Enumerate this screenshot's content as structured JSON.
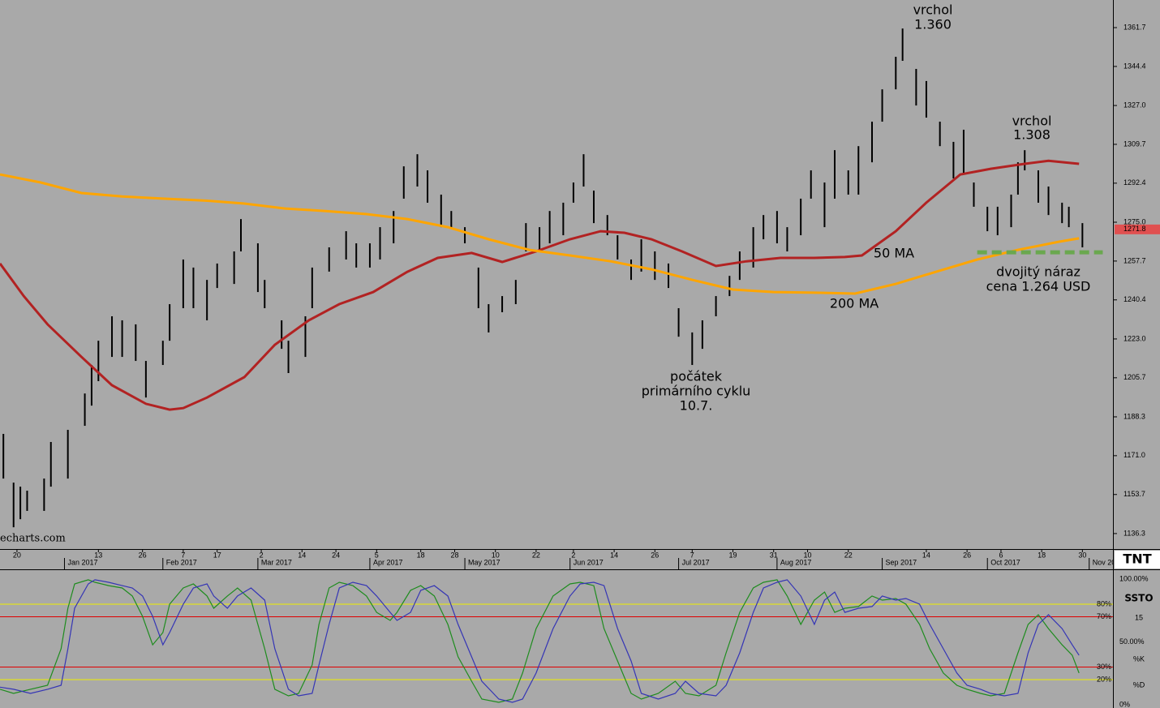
{
  "chart_data": [
    {
      "type": "ohlc",
      "color": "#000000",
      "x": [
        "2016-12-16",
        "2016-12-19",
        "2016-12-21",
        "2016-12-23",
        "2016-12-28",
        "2016-12-30",
        "2017-01-04",
        "2017-01-09",
        "2017-01-11",
        "2017-01-13",
        "2017-01-17",
        "2017-01-20",
        "2017-01-24",
        "2017-01-27",
        "2017-02-01",
        "2017-02-03",
        "2017-02-07",
        "2017-02-10",
        "2017-02-14",
        "2017-02-17",
        "2017-02-22",
        "2017-02-24",
        "2017-03-01",
        "2017-03-03",
        "2017-03-08",
        "2017-03-10",
        "2017-03-15",
        "2017-03-17",
        "2017-03-22",
        "2017-03-27",
        "2017-03-30",
        "2017-04-03",
        "2017-04-06",
        "2017-04-10",
        "2017-04-13",
        "2017-04-17",
        "2017-04-20",
        "2017-04-24",
        "2017-04-27",
        "2017-05-01",
        "2017-05-05",
        "2017-05-08",
        "2017-05-12",
        "2017-05-16",
        "2017-05-19",
        "2017-05-23",
        "2017-05-26",
        "2017-05-30",
        "2017-06-02",
        "2017-06-05",
        "2017-06-08",
        "2017-06-12",
        "2017-06-15",
        "2017-06-19",
        "2017-06-22",
        "2017-06-26",
        "2017-06-30",
        "2017-07-03",
        "2017-07-07",
        "2017-07-10",
        "2017-07-14",
        "2017-07-18",
        "2017-07-21",
        "2017-07-25",
        "2017-07-28",
        "2017-08-01",
        "2017-08-04",
        "2017-08-08",
        "2017-08-11",
        "2017-08-15",
        "2017-08-18",
        "2017-08-22",
        "2017-08-25",
        "2017-08-29",
        "2017-09-01",
        "2017-09-05",
        "2017-09-07",
        "2017-09-11",
        "2017-09-14",
        "2017-09-18",
        "2017-09-22",
        "2017-09-25",
        "2017-09-28",
        "2017-10-02",
        "2017-10-05",
        "2017-10-09",
        "2017-10-11",
        "2017-10-13",
        "2017-10-17",
        "2017-10-20",
        "2017-10-24",
        "2017-10-26",
        "2017-10-30"
      ],
      "high": [
        1180.7,
        1159.0,
        1157.2,
        1155.4,
        1160.8,
        1177.1,
        1182.5,
        1198.7,
        1211.4,
        1222.2,
        1233.1,
        1231.3,
        1229.5,
        1213.2,
        1222.2,
        1238.5,
        1258.4,
        1254.8,
        1249.3,
        1256.6,
        1262.0,
        1276.4,
        1265.6,
        1249.3,
        1231.3,
        1222.2,
        1233.1,
        1254.8,
        1263.8,
        1271.0,
        1265.6,
        1265.6,
        1272.8,
        1280.0,
        1299.9,
        1305.3,
        1298.1,
        1287.3,
        1280.0,
        1272.8,
        1254.8,
        1238.5,
        1242.1,
        1249.3,
        1274.6,
        1272.8,
        1280.0,
        1283.7,
        1292.7,
        1305.3,
        1289.1,
        1278.2,
        1269.2,
        1258.4,
        1267.4,
        1262.0,
        1256.6,
        1236.7,
        1225.9,
        1231.3,
        1242.1,
        1251.1,
        1262.0,
        1272.8,
        1278.2,
        1280.0,
        1272.8,
        1285.5,
        1298.1,
        1292.7,
        1307.1,
        1298.1,
        1308.9,
        1319.8,
        1334.2,
        1348.7,
        1361.3,
        1343.3,
        1337.9,
        1319.8,
        1310.8,
        1316.2,
        1292.7,
        1281.9,
        1281.9,
        1287.3,
        1301.7,
        1307.1,
        1298.1,
        1290.9,
        1283.7,
        1281.9,
        1274.6
      ],
      "low": [
        1160.8,
        1139.1,
        1142.7,
        1146.4,
        1146.4,
        1157.2,
        1160.8,
        1184.3,
        1193.3,
        1204.2,
        1215.0,
        1215.0,
        1213.2,
        1196.9,
        1211.4,
        1222.2,
        1236.7,
        1236.7,
        1231.3,
        1245.7,
        1247.5,
        1262.0,
        1243.9,
        1236.7,
        1218.6,
        1207.8,
        1215.0,
        1236.7,
        1253.0,
        1258.4,
        1254.8,
        1254.8,
        1258.4,
        1265.6,
        1285.5,
        1290.9,
        1283.7,
        1272.8,
        1272.8,
        1265.6,
        1236.7,
        1225.9,
        1234.9,
        1238.5,
        1262.0,
        1262.0,
        1265.6,
        1269.2,
        1283.7,
        1290.9,
        1274.6,
        1269.2,
        1258.4,
        1249.3,
        1253.0,
        1249.3,
        1245.7,
        1224.0,
        1211.4,
        1218.6,
        1233.1,
        1242.1,
        1249.3,
        1254.8,
        1267.4,
        1265.6,
        1262.0,
        1269.2,
        1285.5,
        1272.8,
        1285.5,
        1287.3,
        1287.3,
        1301.7,
        1319.8,
        1334.2,
        1346.9,
        1327.0,
        1321.6,
        1308.9,
        1294.5,
        1296.3,
        1281.9,
        1271.0,
        1269.2,
        1272.8,
        1287.3,
        1298.1,
        1283.7,
        1278.2,
        1274.6,
        1272.8,
        1263.8
      ],
      "moving_averages": [
        {
          "name": "50 MA",
          "color": "#b22222",
          "x": [
            "2016-12-15",
            "2016-12-22",
            "2016-12-29",
            "2017-01-08",
            "2017-01-17",
            "2017-01-27",
            "2017-02-03",
            "2017-02-07",
            "2017-02-14",
            "2017-02-25",
            "2017-03-06",
            "2017-03-16",
            "2017-03-25",
            "2017-04-04",
            "2017-04-14",
            "2017-04-23",
            "2017-05-03",
            "2017-05-12",
            "2017-05-22",
            "2017-06-01",
            "2017-06-10",
            "2017-06-17",
            "2017-06-25",
            "2017-07-04",
            "2017-07-14",
            "2017-07-23",
            "2017-08-02",
            "2017-08-12",
            "2017-08-21",
            "2017-08-26",
            "2017-09-05",
            "2017-09-14",
            "2017-09-24",
            "2017-10-03",
            "2017-10-13",
            "2017-10-20",
            "2017-10-29"
          ],
          "values": [
            1256.6,
            1242.1,
            1229.5,
            1215.0,
            1202.4,
            1194.1,
            1191.5,
            1192.2,
            1196.9,
            1206.0,
            1220.4,
            1231.3,
            1238.5,
            1243.9,
            1252.9,
            1259.1,
            1261.3,
            1257.3,
            1262.0,
            1267.4,
            1271.0,
            1270.3,
            1267.4,
            1262.0,
            1255.5,
            1257.6,
            1259.1,
            1259.1,
            1259.5,
            1260.2,
            1271.0,
            1283.7,
            1296.3,
            1298.8,
            1301.0,
            1302.4,
            1301.0
          ]
        },
        {
          "name": "200 MA",
          "color": "#ffa500",
          "x": [
            "2016-12-15",
            "2016-12-27",
            "2017-01-08",
            "2017-01-20",
            "2017-02-01",
            "2017-02-13",
            "2017-02-25",
            "2017-03-09",
            "2017-03-21",
            "2017-04-02",
            "2017-04-14",
            "2017-04-26",
            "2017-05-08",
            "2017-05-20",
            "2017-06-01",
            "2017-06-13",
            "2017-06-25",
            "2017-07-07",
            "2017-07-19",
            "2017-07-31",
            "2017-08-12",
            "2017-08-24",
            "2017-09-05",
            "2017-09-17",
            "2017-09-29",
            "2017-10-11",
            "2017-10-23",
            "2017-10-29"
          ],
          "values": [
            1296.3,
            1292.7,
            1288.0,
            1286.5,
            1285.5,
            1284.7,
            1283.3,
            1281.1,
            1280.0,
            1278.6,
            1276.4,
            1272.8,
            1267.4,
            1262.7,
            1260.2,
            1257.6,
            1254.0,
            1249.3,
            1245.0,
            1243.9,
            1243.6,
            1243.2,
            1247.5,
            1253.0,
            1258.4,
            1262.7,
            1266.3,
            1267.8
          ]
        }
      ],
      "support": {
        "value": 1261.6,
        "x": [
          "2017-09-29",
          "2017-11-05"
        ],
        "color": "#6aa84f"
      },
      "last_value": 1271.8,
      "xlim": [
        "2016-12-15",
        "2017-11-08"
      ],
      "ylim": [
        1129.4,
        1374.0
      ],
      "yticks": [
        1136.3,
        1153.7,
        {
          "value": 1171,
          "label": "1171.0"
        },
        1188.3,
        1205.7,
        {
          "value": 1223,
          "label": "1223.0"
        },
        1240.4,
        1257.7,
        {
          "value": 1275,
          "label": "1275.0"
        },
        1292.4,
        1309.7,
        {
          "value": 1327,
          "label": "1327.0"
        },
        1344.4,
        1361.7
      ],
      "xticks": [
        {
          "value": "2016-12-20",
          "label": "20"
        },
        {
          "value": "2017-01-13",
          "label": "13"
        },
        {
          "value": "2017-01-26",
          "label": "26"
        },
        {
          "value": "2017-02-07",
          "label": "7"
        },
        {
          "value": "2017-02-17",
          "label": "17"
        },
        {
          "value": "2017-03-02",
          "label": "2"
        },
        {
          "value": "2017-03-14",
          "label": "14"
        },
        {
          "value": "2017-03-24",
          "label": "24"
        },
        {
          "value": "2017-04-05",
          "label": "5"
        },
        {
          "value": "2017-04-18",
          "label": "18"
        },
        {
          "value": "2017-04-28",
          "label": "28"
        },
        {
          "value": "2017-05-10",
          "label": "10"
        },
        {
          "value": "2017-05-22",
          "label": "22"
        },
        {
          "value": "2017-06-02",
          "label": "2"
        },
        {
          "value": "2017-06-14",
          "label": "14"
        },
        {
          "value": "2017-06-26",
          "label": "26"
        },
        {
          "value": "2017-07-07",
          "label": "7"
        },
        {
          "value": "2017-07-19",
          "label": "19"
        },
        {
          "value": "2017-07-31",
          "label": "31"
        },
        {
          "value": "2017-08-10",
          "label": "10"
        },
        {
          "value": "2017-08-22",
          "label": "22"
        },
        {
          "value": "2017-09-14",
          "label": "14"
        },
        {
          "value": "2017-09-26",
          "label": "26"
        },
        {
          "value": "2017-10-06",
          "label": "6"
        },
        {
          "value": "2017-10-18",
          "label": "18"
        },
        {
          "value": "2017-10-30",
          "label": "30"
        }
      ],
      "month_ticks": [
        {
          "value": "2017-01-03",
          "label": "Jan 2017"
        },
        {
          "value": "2017-02-01",
          "label": "Feb 2017"
        },
        {
          "value": "2017-03-01",
          "label": "Mar 2017"
        },
        {
          "value": "2017-04-03",
          "label": "Apr 2017"
        },
        {
          "value": "2017-05-01",
          "label": "May 2017"
        },
        {
          "value": "2017-06-01",
          "label": "Jun 2017"
        },
        {
          "value": "2017-07-03",
          "label": "Jul 2017"
        },
        {
          "value": "2017-08-01",
          "label": "Aug 2017"
        },
        {
          "value": "2017-09-01",
          "label": "Sep 2017"
        },
        {
          "value": "2017-10-02",
          "label": "Oct 2017"
        },
        {
          "value": "2017-11-01",
          "label": "Nov 20"
        }
      ],
      "annotations": [
        {
          "lines": [
            "vrchol",
            "1.360"
          ]
        },
        {
          "lines": [
            "vrchol",
            "1.308"
          ]
        },
        {
          "lines": [
            "počátek",
            "primárního cyklu",
            "10.7."
          ]
        },
        {
          "lines": [
            "dvojitý náraz",
            "cena 1.264 USD"
          ]
        }
      ],
      "watermark": "echarts.com",
      "logo": "TNT"
    },
    {
      "type": "stochastic",
      "title": "SSTO",
      "period": 15,
      "xlim": [
        "2016-12-15",
        "2017-11-08"
      ],
      "ylim": [
        -2.6,
        107.1
      ],
      "yticks": [
        {
          "value": 100,
          "label": "100.00%"
        },
        {
          "value": 80,
          "label": "80%",
          "line": "#f0f000"
        },
        {
          "value": 70,
          "label": "70%",
          "line": "#e00000"
        },
        {
          "value": 50,
          "label": "50.00%"
        },
        {
          "value": 30,
          "label": "30%",
          "line": "#e00000"
        },
        {
          "value": 20,
          "label": "20%",
          "line": "#f0f000"
        },
        {
          "value": 0,
          "label": "0%"
        }
      ],
      "x": [
        "2016-12-15",
        "2016-12-19",
        "2016-12-24",
        "2016-12-29",
        "2017-01-02",
        "2017-01-04",
        "2017-01-06",
        "2017-01-10",
        "2017-01-12",
        "2017-01-16",
        "2017-01-20",
        "2017-01-23",
        "2017-01-26",
        "2017-01-29",
        "2017-02-01",
        "2017-02-03",
        "2017-02-07",
        "2017-02-10",
        "2017-02-14",
        "2017-02-16",
        "2017-02-20",
        "2017-02-23",
        "2017-02-27",
        "2017-03-03",
        "2017-03-06",
        "2017-03-10",
        "2017-03-13",
        "2017-03-17",
        "2017-03-19",
        "2017-03-22",
        "2017-03-25",
        "2017-03-29",
        "2017-04-02",
        "2017-04-05",
        "2017-04-09",
        "2017-04-11",
        "2017-04-15",
        "2017-04-18",
        "2017-04-22",
        "2017-04-26",
        "2017-04-29",
        "2017-05-03",
        "2017-05-06",
        "2017-05-11",
        "2017-05-15",
        "2017-05-18",
        "2017-05-22",
        "2017-05-27",
        "2017-06-01",
        "2017-06-04",
        "2017-06-08",
        "2017-06-11",
        "2017-06-15",
        "2017-06-19",
        "2017-06-22",
        "2017-06-27",
        "2017-07-02",
        "2017-07-05",
        "2017-07-09",
        "2017-07-14",
        "2017-07-17",
        "2017-07-21",
        "2017-07-25",
        "2017-07-28",
        "2017-08-01",
        "2017-08-04",
        "2017-08-08",
        "2017-08-12",
        "2017-08-15",
        "2017-08-18",
        "2017-08-21",
        "2017-08-25",
        "2017-08-29",
        "2017-09-01",
        "2017-09-05",
        "2017-09-08",
        "2017-09-12",
        "2017-09-15",
        "2017-09-19",
        "2017-09-23",
        "2017-09-26",
        "2017-09-30",
        "2017-10-03",
        "2017-10-07",
        "2017-10-11",
        "2017-10-14",
        "2017-10-17",
        "2017-10-20",
        "2017-10-24",
        "2017-10-27",
        "2017-10-29"
      ],
      "series": [
        {
          "name": "%K",
          "color": "#1e8c1e",
          "values": [
            12.3,
            9.0,
            12.3,
            15.5,
            44.5,
            76.8,
            96.1,
            99.4,
            97.4,
            94.8,
            92.9,
            86.5,
            70.3,
            47.7,
            57.4,
            80.0,
            92.9,
            96.1,
            86.5,
            76.8,
            86.5,
            92.9,
            83.2,
            44.5,
            12.3,
            7.1,
            9.0,
            31.6,
            63.9,
            92.9,
            97.4,
            94.8,
            86.5,
            73.5,
            67.1,
            73.5,
            91.0,
            94.8,
            86.5,
            63.9,
            38.1,
            18.7,
            4.5,
            1.9,
            4.5,
            25.2,
            60.6,
            86.5,
            96.1,
            97.4,
            94.8,
            60.6,
            34.8,
            9.0,
            4.5,
            9.0,
            18.7,
            9.0,
            7.1,
            15.5,
            41.3,
            73.5,
            92.9,
            97.4,
            99.4,
            86.5,
            63.9,
            83.2,
            89.7,
            73.5,
            76.8,
            78.1,
            86.5,
            83.2,
            84.5,
            80.0,
            63.9,
            44.5,
            25.2,
            15.5,
            12.3,
            9.0,
            7.1,
            9.0,
            41.3,
            63.9,
            71.6,
            60.6,
            47.7,
            39.4,
            25.2
          ]
        },
        {
          "name": "%D",
          "color": "#3535b5",
          "values": [
            14.0,
            12.3,
            9.0,
            12.3,
            15.5,
            44.5,
            76.8,
            96.1,
            99.4,
            97.4,
            94.8,
            92.9,
            86.5,
            70.3,
            47.7,
            57.4,
            80.0,
            92.9,
            96.1,
            86.5,
            76.8,
            86.5,
            92.9,
            83.2,
            44.5,
            12.3,
            7.1,
            9.0,
            31.6,
            63.9,
            92.9,
            97.4,
            94.8,
            86.5,
            73.5,
            67.1,
            73.5,
            91.0,
            94.8,
            86.5,
            63.9,
            38.1,
            18.7,
            4.5,
            1.9,
            4.5,
            25.2,
            60.6,
            86.5,
            96.1,
            97.4,
            94.8,
            60.6,
            34.8,
            9.0,
            4.5,
            9.0,
            18.7,
            9.0,
            7.1,
            15.5,
            41.3,
            73.5,
            92.9,
            97.4,
            99.4,
            86.5,
            63.9,
            83.2,
            89.7,
            73.5,
            76.8,
            78.1,
            86.5,
            83.2,
            84.5,
            80.0,
            63.9,
            44.5,
            25.2,
            15.5,
            12.3,
            9.0,
            7.1,
            9.0,
            41.3,
            63.9,
            71.6,
            60.6,
            47.7,
            39.4
          ]
        }
      ]
    }
  ]
}
